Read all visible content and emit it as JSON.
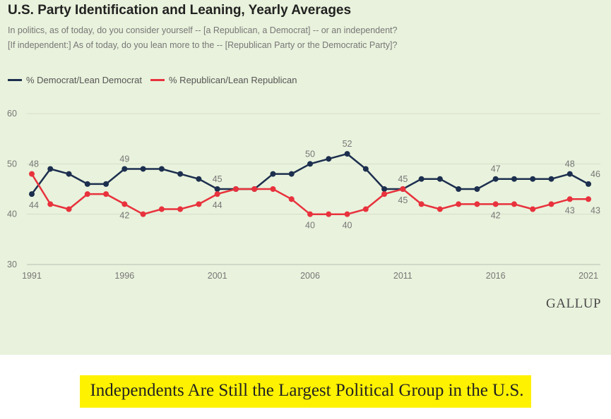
{
  "chart": {
    "title": "U.S. Party Identification and Leaning, Yearly Averages",
    "question_line1": "In politics, as of today, do you consider yourself -- [a Republican, a Democrat] -- or an independent?",
    "question_line2": "[If independent:] As of today, do you lean more to the -- [Republican Party or the Democratic Party]?",
    "brand": "GALLUP"
  },
  "caption": "Independents Are Still the Largest Political Group in the U.S.",
  "chart_data": {
    "type": "line",
    "x": [
      1991,
      1992,
      1993,
      1994,
      1995,
      1996,
      1997,
      1998,
      1999,
      2000,
      2001,
      2002,
      2003,
      2004,
      2005,
      2006,
      2007,
      2008,
      2009,
      2010,
      2011,
      2012,
      2013,
      2014,
      2015,
      2016,
      2017,
      2018,
      2019,
      2020,
      2021
    ],
    "series": [
      {
        "name": "% Democrat/Lean Democrat",
        "color": "#1c2f4f",
        "values": [
          44,
          49,
          48,
          46,
          46,
          49,
          49,
          49,
          48,
          47,
          45,
          45,
          45,
          48,
          48,
          50,
          51,
          52,
          49,
          45,
          45,
          47,
          47,
          45,
          45,
          47,
          47,
          47,
          47,
          48,
          46
        ]
      },
      {
        "name": "% Republican/Lean Republican",
        "color": "#e8323d",
        "values": [
          48,
          42,
          41,
          44,
          44,
          42,
          40,
          41,
          41,
          42,
          44,
          45,
          45,
          45,
          43,
          40,
          40,
          40,
          41,
          44,
          45,
          42,
          41,
          42,
          42,
          42,
          42,
          41,
          42,
          43,
          43
        ]
      }
    ],
    "y_ticks": [
      30,
      40,
      50,
      60
    ],
    "x_ticks": [
      "1991",
      "1996",
      "2001",
      "2006",
      "2011",
      "2016",
      "2021"
    ],
    "ylim": [
      30,
      60
    ],
    "xlim": [
      1991,
      2021
    ],
    "grid": true,
    "legend": "top-left",
    "data_labels": [
      {
        "series": 0,
        "year": 1991,
        "text": "44"
      },
      {
        "series": 0,
        "year": 1996,
        "text": "49"
      },
      {
        "series": 0,
        "year": 2001,
        "text": "45"
      },
      {
        "series": 0,
        "year": 2006,
        "text": "50"
      },
      {
        "series": 0,
        "year": 2008,
        "text": "52"
      },
      {
        "series": 0,
        "year": 2011,
        "text": "45"
      },
      {
        "series": 0,
        "year": 2016,
        "text": "47"
      },
      {
        "series": 0,
        "year": 2020,
        "text": "48"
      },
      {
        "series": 0,
        "year": 2021,
        "text": "46"
      },
      {
        "series": 1,
        "year": 1991,
        "text": "48"
      },
      {
        "series": 1,
        "year": 1996,
        "text": "42"
      },
      {
        "series": 1,
        "year": 2001,
        "text": "44"
      },
      {
        "series": 1,
        "year": 2006,
        "text": "40"
      },
      {
        "series": 1,
        "year": 2008,
        "text": "40"
      },
      {
        "series": 1,
        "year": 2011,
        "text": "45"
      },
      {
        "series": 1,
        "year": 2016,
        "text": "42"
      },
      {
        "series": 1,
        "year": 2020,
        "text": "43"
      },
      {
        "series": 1,
        "year": 2021,
        "text": "43"
      }
    ]
  }
}
